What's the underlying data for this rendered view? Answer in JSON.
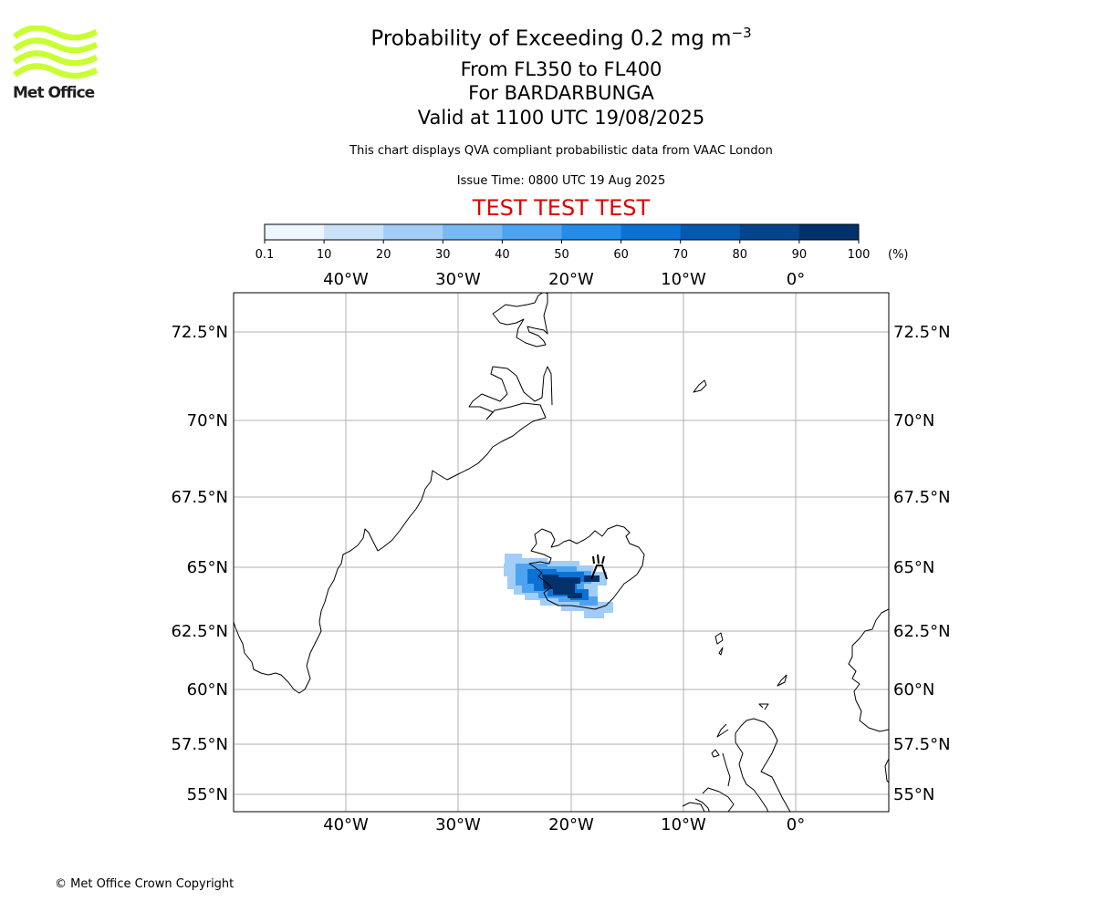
{
  "logo": {
    "text": "Met Office",
    "color": "#c8ff32"
  },
  "header": {
    "title": "Probability of Exceeding 0.2 mg m",
    "title_unit_exp": "−3",
    "flight_levels": "From FL350 to FL400",
    "volcano": "For BARDARBUNGA",
    "valid": "Valid at 1100 UTC 19/08/2025",
    "subtitle": "This chart displays QVA compliant probabilistic data from VAAC London",
    "issue_time": "Issue Time: 0800 UTC 19 Aug 2025",
    "test_banner": "TEST TEST TEST",
    "test_banner_color": "#e00000"
  },
  "colorbar": {
    "labels": [
      "0.1",
      "10",
      "20",
      "30",
      "40",
      "50",
      "60",
      "70",
      "80",
      "90",
      "100"
    ],
    "colors": [
      "#eef6fe",
      "#c9e2f9",
      "#a2cdf6",
      "#78b8f3",
      "#4ea3f0",
      "#238ce8",
      "#0a72d4",
      "#0359b0",
      "#03448c",
      "#02316c"
    ],
    "unit": "(%)"
  },
  "map": {
    "top_lon_labels": [
      "40°W",
      "30°W",
      "20°W",
      "10°W",
      "0°"
    ],
    "bottom_lon_labels": [
      "40°W",
      "30°W",
      "20°W",
      "10°W",
      "0°"
    ],
    "left_lat_labels": [
      "72.5°N",
      "70°N",
      "67.5°N",
      "65°N",
      "62.5°N",
      "60°N",
      "57.5°N",
      "55°N"
    ],
    "right_lat_labels": [
      "72.5°N",
      "70°N",
      "67.5°N",
      "65°N",
      "62.5°N",
      "60°N",
      "57.5°N",
      "55°N"
    ],
    "grid_color": "#b0b0b0",
    "coastline_color": "#000000",
    "plume_color": "#0a72d4",
    "plume_core_color": "#02316c"
  },
  "footer": {
    "copyright": "© Met Office Crown Copyright"
  }
}
